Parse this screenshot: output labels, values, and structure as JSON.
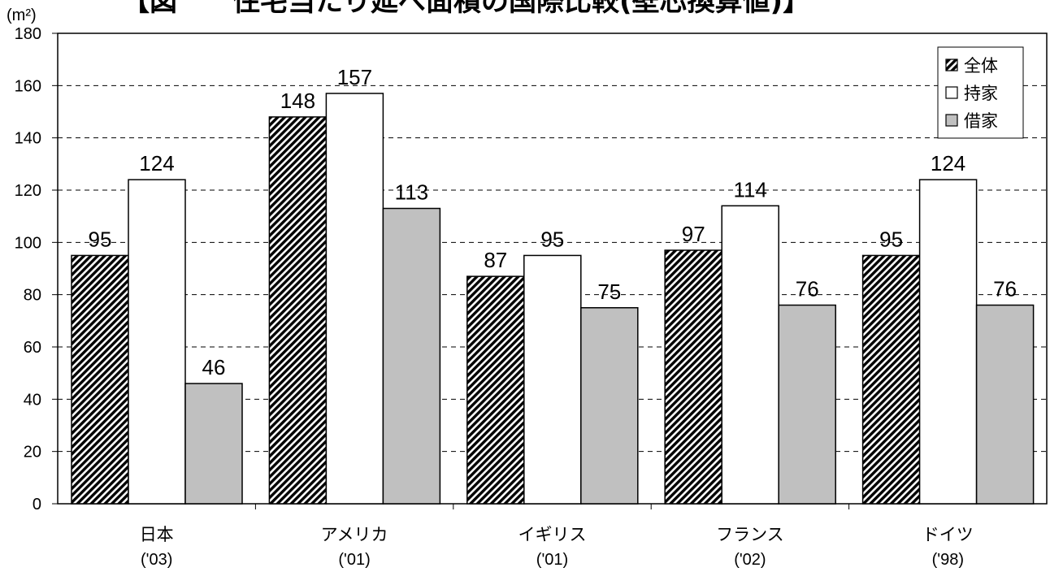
{
  "chart_data": {
    "type": "bar",
    "title": "【図　　住宅当たり延べ面積の国際比較(壁芯換算値)】",
    "ylabel": "(m²)",
    "ylim": [
      0,
      180
    ],
    "yticks": [
      0,
      20,
      40,
      60,
      80,
      100,
      120,
      140,
      160,
      180
    ],
    "grid": "horizontal-dashed",
    "legend_position": "top-right",
    "categories": [
      {
        "name": "日本",
        "year": "('03)"
      },
      {
        "name": "アメリカ",
        "year": "('01)"
      },
      {
        "name": "イギリス",
        "year": "('01)"
      },
      {
        "name": "フランス",
        "year": "('02)"
      },
      {
        "name": "ドイツ",
        "year": "('98)"
      }
    ],
    "series": [
      {
        "name": "全体",
        "fill": "hatched",
        "color": "#000000",
        "values": [
          95,
          148,
          87,
          97,
          95
        ]
      },
      {
        "name": "持家",
        "fill": "white",
        "color": "#ffffff",
        "values": [
          124,
          157,
          95,
          114,
          124
        ]
      },
      {
        "name": "借家",
        "fill": "gray",
        "color": "#c0c0c0",
        "values": [
          46,
          113,
          75,
          76,
          76
        ]
      }
    ]
  }
}
